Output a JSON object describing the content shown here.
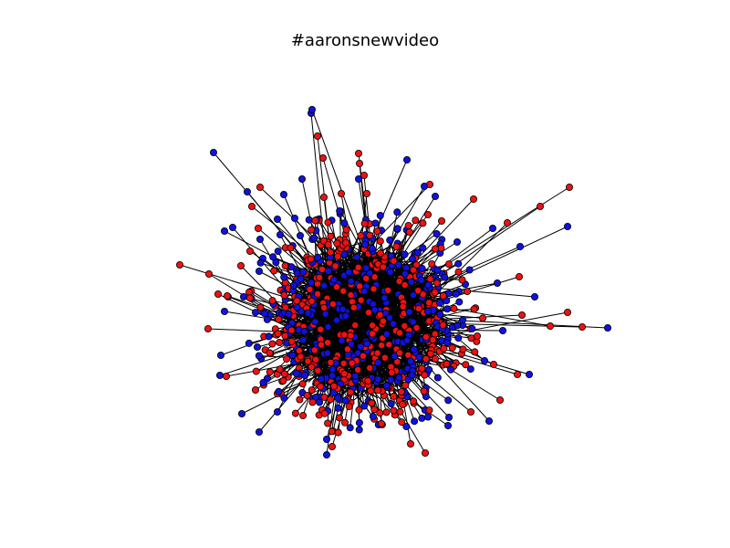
{
  "figure": {
    "title": "#aaronsnewvideo"
  },
  "colors": {
    "background": "#ffffff",
    "edge": "#000000",
    "node_group_a": "#ee1111",
    "node_group_b": "#1111dd",
    "node_outline": "#000000"
  }
}
